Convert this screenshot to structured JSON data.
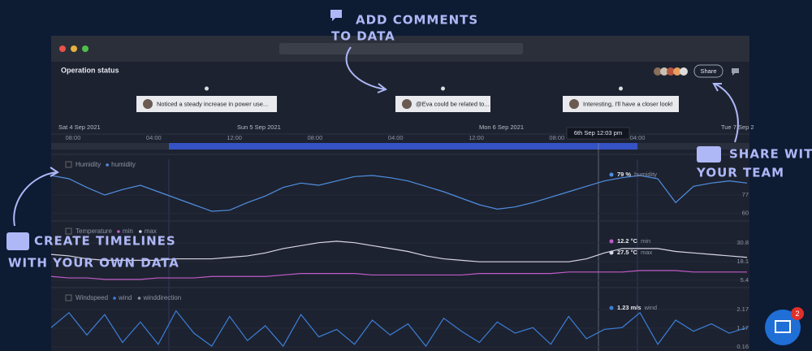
{
  "annotations": {
    "comments": [
      "ADD COMMENTS",
      "TO DATA"
    ],
    "share": [
      "SHARE WITH",
      "YOUR TEAM"
    ],
    "timelines": [
      "CREATE TIMELINES",
      "WITH YOUR OWN DATA"
    ]
  },
  "app": {
    "title": "Operation status",
    "share_button": "Share",
    "comments": [
      "Noticed a steady increase in power use...",
      "@Eva could be related to...",
      "Interesting, I'll have a closer look!"
    ],
    "timeline": {
      "days": [
        "Sat 4 Sep 2021",
        "Sun 5 Sep 2021",
        "Mon 6 Sep 2021",
        "Tue 7 Sep 2"
      ],
      "hours": [
        "08:00",
        "04:00",
        "12:00",
        "08:00",
        "04:00",
        "12:00",
        "08:00",
        "04:00"
      ],
      "tooltip": "6th Sep 12:03 pm"
    },
    "panels": [
      {
        "label": "Humidity",
        "ylim": [
          56,
          101
        ],
        "yticks": [
          60,
          77
        ],
        "series": [
          {
            "name": "humidity",
            "color": "#4f8fe0",
            "values": [
              95,
              92,
              84,
              77,
              82,
              86,
              80,
              74,
              68,
              62,
              63,
              70,
              76,
              84,
              88,
              86,
              90,
              94,
              95,
              93,
              90,
              85,
              80,
              74,
              68,
              64,
              66,
              70,
              75,
              80,
              85,
              90,
              93,
              95,
              92,
              70,
              85,
              88,
              90,
              88
            ],
            "readout": "79 %"
          }
        ]
      },
      {
        "label": "Temperature",
        "ylim": [
          2.6,
          35.8
        ],
        "yticks": [
          5.4,
          18.1,
          30.8
        ],
        "series": [
          {
            "name": "min",
            "color": "#c05cc8",
            "values": [
              8,
              7,
              7,
              6,
              6,
              6,
              7,
              7,
              7,
              8,
              8,
              8,
              8,
              9,
              10,
              10,
              10,
              10,
              9,
              9,
              9,
              9,
              9,
              9,
              10,
              10,
              10,
              10,
              10,
              11,
              11,
              11,
              11,
              12,
              12,
              12,
              11,
              11,
              11,
              11
            ],
            "readout": "12.2 °C"
          },
          {
            "name": "max",
            "color": "#d9d6e6",
            "values": [
              23,
              22,
              20,
              19,
              19,
              19,
              19,
              20,
              20,
              20,
              21,
              22,
              24,
              27,
              29,
              31,
              32,
              31,
              29,
              27,
              25,
              22,
              20,
              19,
              18,
              18,
              18,
              18,
              18,
              18,
              20,
              24,
              27,
              27,
              27,
              25,
              24,
              23,
              22,
              21
            ],
            "readout": "27.5 °C"
          }
        ]
      },
      {
        "label": "Windspeed",
        "ylim": [
          -0.06,
          2.56
        ],
        "yticks": [
          0.16,
          1.17,
          2.17
        ],
        "series": [
          {
            "name": "wind",
            "color": "#3b7fd8",
            "values": [
              1.2,
              2.0,
              0.8,
              1.9,
              0.4,
              1.5,
              0.3,
              2.1,
              0.9,
              0.2,
              1.8,
              0.5,
              1.3,
              0.2,
              1.9,
              0.7,
              1.1,
              0.3,
              1.6,
              0.8,
              1.4,
              0.2,
              1.7,
              1.0,
              0.4,
              1.5,
              0.9,
              1.2,
              0.3,
              1.8,
              0.6,
              1.1,
              1.2,
              2.0,
              0.3,
              1.6,
              1.0,
              1.4,
              0.9,
              1.2
            ],
            "readout": "1.23 m/s"
          },
          {
            "name": "winddirection"
          }
        ]
      }
    ]
  },
  "chat": {
    "badge": "2"
  }
}
